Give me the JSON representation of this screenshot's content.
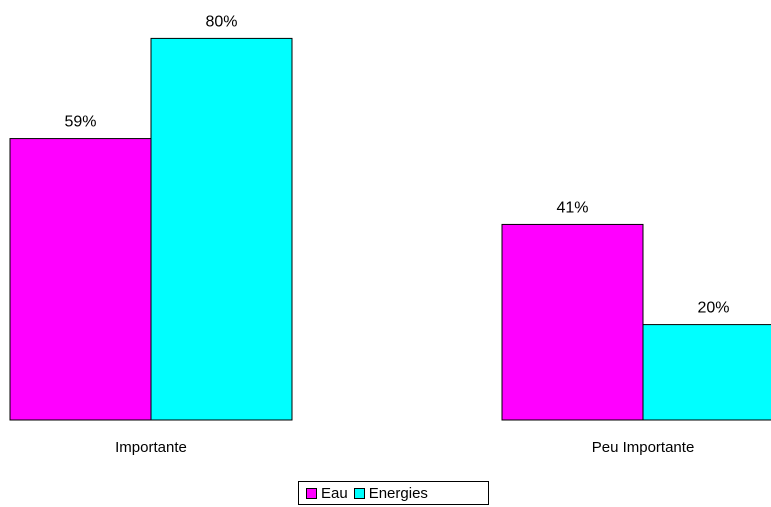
{
  "chart_data": {
    "type": "bar",
    "title": "",
    "xlabel": "",
    "ylabel": "",
    "categories": [
      "Importante",
      "Peu Importante"
    ],
    "series": [
      {
        "name": "Eau",
        "values": [
          59,
          41
        ],
        "labels": [
          "59%",
          "41%"
        ],
        "color": "#FF00FF"
      },
      {
        "name": "Energies",
        "values": [
          80,
          20
        ],
        "labels": [
          "80%",
          "20%"
        ],
        "color": "#00FFFF"
      }
    ],
    "ylim": [
      0,
      100
    ],
    "grid": false,
    "legend_position": "bottom"
  }
}
